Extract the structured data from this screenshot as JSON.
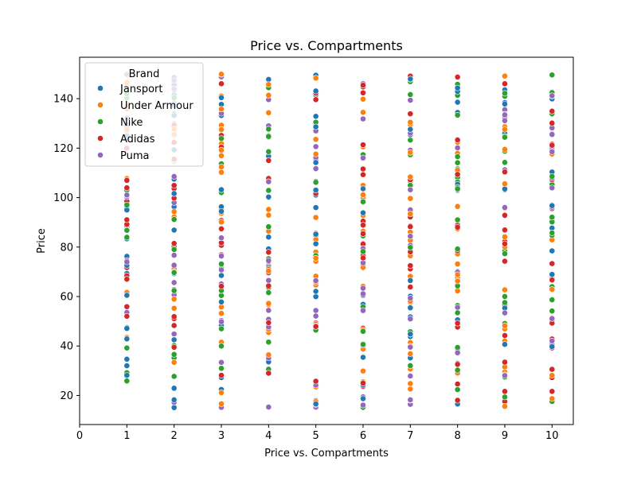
{
  "chart_data": {
    "type": "scatter",
    "title": "Price vs. Compartments",
    "xlabel": "Price vs. Compartments",
    "ylabel": "Price",
    "xlim": [
      0,
      10.45
    ],
    "ylim": [
      8.25,
      156.75
    ],
    "xticks": [
      0,
      1,
      2,
      3,
      4,
      5,
      6,
      7,
      8,
      9,
      10
    ],
    "yticks": [
      20,
      40,
      60,
      80,
      100,
      120,
      140
    ],
    "grid": false,
    "legend": {
      "title": "Brand",
      "placement": "top-left"
    },
    "x_categories": [
      1,
      2,
      3,
      4,
      5,
      6,
      7,
      8,
      9,
      10
    ],
    "y_range": [
      15,
      150
    ],
    "series": [
      {
        "name": "Jansport",
        "color": "#1f77b4"
      },
      {
        "name": "Under Armour",
        "color": "#ff7f0e"
      },
      {
        "name": "Nike",
        "color": "#2ca02c"
      },
      {
        "name": "Adidas",
        "color": "#d62728"
      },
      {
        "name": "Puma",
        "color": "#9467bd"
      }
    ]
  }
}
